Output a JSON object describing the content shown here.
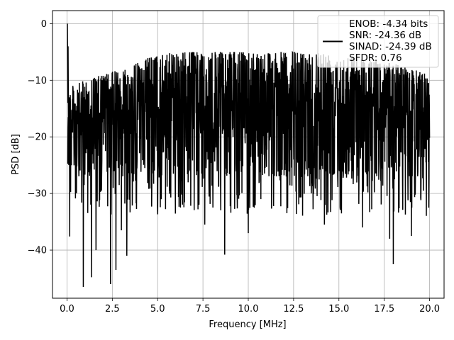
{
  "chart_data": {
    "type": "line",
    "title": "",
    "xlabel": "Frequency [MHz]",
    "ylabel": "PSD [dB]",
    "xlim": [
      -0.8,
      20.8
    ],
    "ylim": [
      -48.5,
      2.3
    ],
    "xticks": [
      0.0,
      2.5,
      5.0,
      7.5,
      10.0,
      12.5,
      15.0,
      17.5,
      20.0
    ],
    "xtick_labels": [
      "0.0",
      "2.5",
      "5.0",
      "7.5",
      "10.0",
      "12.5",
      "15.0",
      "17.5",
      "20.0"
    ],
    "yticks": [
      0,
      -10,
      -20,
      -30,
      -40
    ],
    "ytick_labels": [
      "0",
      "−10",
      "−20",
      "−30",
      "−40"
    ],
    "grid": true,
    "legend_position": "top-right",
    "legend_lines": [
      "ENOB: -4.34 bits",
      "SNR: -24.36 dB",
      "SINAD: -24.39 dB",
      "SFDR: 0.76"
    ],
    "series": [
      {
        "color": "#000000",
        "style": "dense noise",
        "x_range": [
          0,
          20
        ],
        "peak": {
          "x": 0.02,
          "y": 0.0
        },
        "upper_envelope": [
          [
            0.1,
            -11
          ],
          [
            0.3,
            -11
          ],
          [
            1.0,
            -10
          ],
          [
            2.0,
            -9
          ],
          [
            3.0,
            -8
          ],
          [
            3.5,
            -7.5
          ],
          [
            4.5,
            -6
          ],
          [
            6.0,
            -5
          ],
          [
            8.0,
            -5
          ],
          [
            10.0,
            -5
          ],
          [
            12.0,
            -5
          ],
          [
            14.0,
            -5
          ],
          [
            16.0,
            -6
          ],
          [
            18.0,
            -7
          ],
          [
            19.0,
            -8
          ],
          [
            20.0,
            -9
          ]
        ],
        "deep_minima": [
          {
            "x": 0.15,
            "y": -37.6
          },
          {
            "x": 0.9,
            "y": -46.5
          },
          {
            "x": 1.35,
            "y": -44.8
          },
          {
            "x": 1.6,
            "y": -40.0
          },
          {
            "x": 2.4,
            "y": -46.0
          },
          {
            "x": 2.7,
            "y": -43.5
          },
          {
            "x": 3.3,
            "y": -41.0
          },
          {
            "x": 3.0,
            "y": -36.5
          },
          {
            "x": 7.6,
            "y": -35.5
          },
          {
            "x": 8.7,
            "y": -40.8
          },
          {
            "x": 10.0,
            "y": -37.0
          },
          {
            "x": 14.2,
            "y": -35.5
          },
          {
            "x": 16.3,
            "y": -36.0
          },
          {
            "x": 17.8,
            "y": -38.0
          },
          {
            "x": 18.0,
            "y": -42.5
          },
          {
            "x": 19.0,
            "y": -37.5
          }
        ]
      }
    ]
  }
}
